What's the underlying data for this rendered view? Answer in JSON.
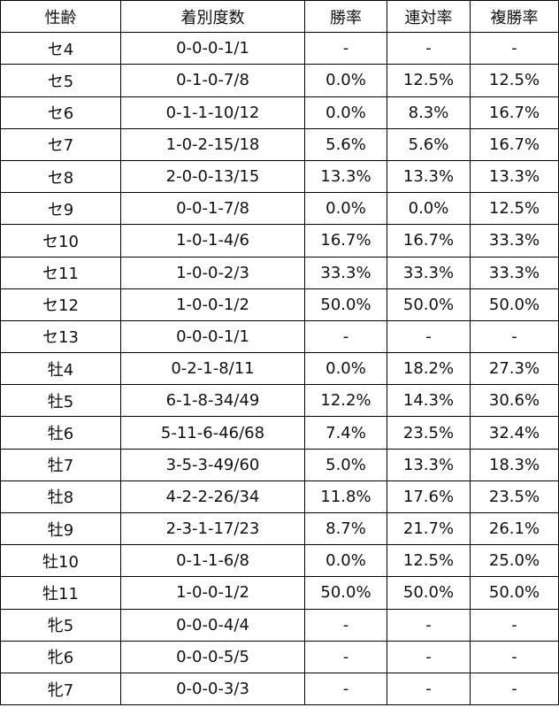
{
  "table": {
    "headers": [
      "性齢",
      "着別度数",
      "勝率",
      "連対率",
      "複勝率"
    ],
    "rows": [
      [
        "セ4",
        "0-0-0-1/1",
        "-",
        "-",
        "-"
      ],
      [
        "セ5",
        "0-1-0-7/8",
        "0.0%",
        "12.5%",
        "12.5%"
      ],
      [
        "セ6",
        "0-1-1-10/12",
        "0.0%",
        "8.3%",
        "16.7%"
      ],
      [
        "セ7",
        "1-0-2-15/18",
        "5.6%",
        "5.6%",
        "16.7%"
      ],
      [
        "セ8",
        "2-0-0-13/15",
        "13.3%",
        "13.3%",
        "13.3%"
      ],
      [
        "セ9",
        "0-0-1-7/8",
        "0.0%",
        "0.0%",
        "12.5%"
      ],
      [
        "セ10",
        "1-0-1-4/6",
        "16.7%",
        "16.7%",
        "33.3%"
      ],
      [
        "セ11",
        "1-0-0-2/3",
        "33.3%",
        "33.3%",
        "33.3%"
      ],
      [
        "セ12",
        "1-0-0-1/2",
        "50.0%",
        "50.0%",
        "50.0%"
      ],
      [
        "セ13",
        "0-0-0-1/1",
        "-",
        "-",
        "-"
      ],
      [
        "牡4",
        "0-2-1-8/11",
        "0.0%",
        "18.2%",
        "27.3%"
      ],
      [
        "牡5",
        "6-1-8-34/49",
        "12.2%",
        "14.3%",
        "30.6%"
      ],
      [
        "牡6",
        "5-11-6-46/68",
        "7.4%",
        "23.5%",
        "32.4%"
      ],
      [
        "牡7",
        "3-5-3-49/60",
        "5.0%",
        "13.3%",
        "18.3%"
      ],
      [
        "牡8",
        "4-2-2-26/34",
        "11.8%",
        "17.6%",
        "23.5%"
      ],
      [
        "牡9",
        "2-3-1-17/23",
        "8.7%",
        "21.7%",
        "26.1%"
      ],
      [
        "牡10",
        "0-1-1-6/8",
        "0.0%",
        "12.5%",
        "25.0%"
      ],
      [
        "牡11",
        "1-0-0-1/2",
        "50.0%",
        "50.0%",
        "50.0%"
      ],
      [
        "牝5",
        "0-0-0-4/4",
        "-",
        "-",
        "-"
      ],
      [
        "牝6",
        "0-0-0-5/5",
        "-",
        "-",
        "-"
      ],
      [
        "牝7",
        "0-0-0-3/3",
        "-",
        "-",
        "-"
      ]
    ]
  }
}
